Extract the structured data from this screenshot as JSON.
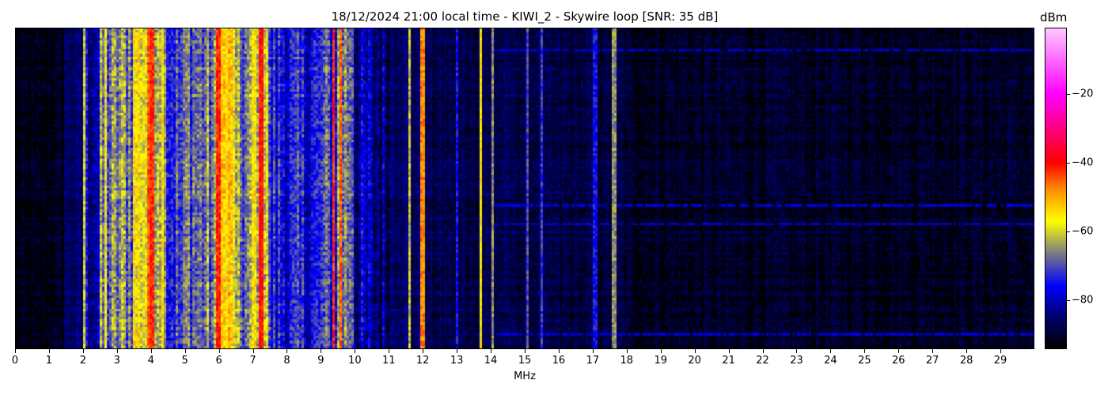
{
  "chart_data": {
    "type": "heatmap",
    "title": "18/12/2024 21:00 local time - KIWI_2 - Skywire loop [SNR: 35 dB]",
    "xlabel": "MHz",
    "ylabel": "",
    "xlim": [
      0,
      30
    ],
    "xticks": [
      "0",
      "1",
      "2",
      "3",
      "4",
      "5",
      "6",
      "7",
      "8",
      "9",
      "10",
      "11",
      "12",
      "13",
      "14",
      "15",
      "16",
      "17",
      "18",
      "19",
      "20",
      "21",
      "22",
      "23",
      "24",
      "25",
      "26",
      "27",
      "28",
      "29"
    ],
    "colorbar": {
      "label": "dBm",
      "range": [
        -94,
        -1
      ],
      "ticks": [
        "−20",
        "−40",
        "−60",
        "−80"
      ],
      "tick_values": [
        -20,
        -40,
        -60,
        -80
      ],
      "colormap": [
        [
          -94,
          "#000000"
        ],
        [
          -84,
          "#00007a"
        ],
        [
          -76,
          "#0000ff"
        ],
        [
          -66,
          "#808080"
        ],
        [
          -57,
          "#ffff00"
        ],
        [
          -48,
          "#ff9000"
        ],
        [
          -40,
          "#ff0000"
        ],
        [
          -20,
          "#ff00ff"
        ],
        [
          -1,
          "#ffc8ff"
        ]
      ]
    },
    "mean_level_dbm_per_0_5_mhz": [
      -93,
      -93,
      -92,
      -86,
      -80,
      -68,
      -66,
      -57,
      -58,
      -72,
      -68,
      -68,
      -55,
      -68,
      -58,
      -75,
      -76,
      -76,
      -72,
      -66,
      -82,
      -84,
      -85,
      -86,
      -88,
      -88,
      -88,
      -88,
      -88,
      -88,
      -88,
      -89,
      -89,
      -89,
      -89,
      -89,
      -91,
      -91,
      -91,
      -91,
      -91,
      -91,
      -91,
      -91,
      -91,
      -91,
      -91,
      -91,
      -91,
      -91,
      -91,
      -91,
      -91,
      -91,
      -91,
      -91,
      -91,
      -91,
      -91,
      -91
    ],
    "strong_carriers_mhz_dbm": [
      [
        2.05,
        -60
      ],
      [
        2.7,
        -58
      ],
      [
        3.95,
        -45
      ],
      [
        4.05,
        -42
      ],
      [
        6.0,
        -42
      ],
      [
        7.25,
        -40
      ],
      [
        9.4,
        -42
      ],
      [
        9.6,
        -45
      ],
      [
        11.6,
        -62
      ],
      [
        12.0,
        -48
      ],
      [
        13.0,
        -75
      ],
      [
        13.72,
        -56
      ],
      [
        14.05,
        -65
      ],
      [
        15.1,
        -70
      ],
      [
        15.5,
        -72
      ],
      [
        17.1,
        -75
      ],
      [
        17.65,
        -65
      ]
    ]
  }
}
